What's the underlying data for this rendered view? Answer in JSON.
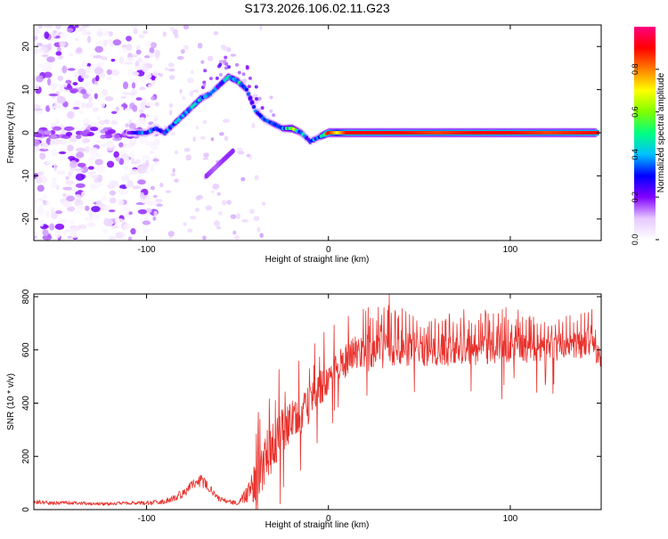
{
  "chart_data": [
    {
      "type": "heatmap",
      "title": "S173.2026.106.02.11.G23",
      "xlabel": "Height of straight line (km)",
      "ylabel": "Frequency (Hz)",
      "xlim": [
        -162,
        150
      ],
      "ylim": [
        -25,
        25
      ],
      "x_ticks": [
        -100,
        0,
        100
      ],
      "x_tick_labels": [
        "-100",
        "0",
        "100"
      ],
      "y_ticks": [
        -20,
        -10,
        0,
        10,
        20
      ],
      "y_tick_labels": [
        "-20",
        "-10",
        "0",
        "10",
        "20"
      ],
      "grid": false,
      "colorbar": {
        "label": "Normalized spectral amplitude",
        "range": [
          0,
          1
        ],
        "ticks": [
          0.0,
          0.2,
          0.4,
          0.6,
          0.8
        ],
        "tick_labels": [
          "0.0",
          "0.2",
          "0.4",
          "0.6",
          "0.8"
        ],
        "colors": [
          "#ffffff",
          "#e6c8ff",
          "#8000ff",
          "#0000ff",
          "#00c0ff",
          "#00ff80",
          "#80ff00",
          "#ffff00",
          "#ff8000",
          "#ff0000",
          "#ff0080"
        ]
      },
      "ridge": {
        "name": "dominant frequency track",
        "x": [
          -110,
          -105,
          -100,
          -95,
          -90,
          -85,
          -80,
          -75,
          -70,
          -65,
          -60,
          -55,
          -50,
          -45,
          -40,
          -35,
          -30,
          -25,
          -20,
          -15,
          -10,
          -5,
          0,
          5,
          10,
          20,
          40,
          60,
          80,
          100,
          120,
          148
        ],
        "y": [
          0,
          0,
          0,
          1,
          0,
          2,
          4,
          6,
          8,
          9,
          11,
          13,
          12,
          10,
          5,
          3,
          2,
          1,
          1,
          0,
          -2,
          -1,
          0,
          0,
          0,
          0,
          0,
          0,
          0,
          0,
          0,
          0
        ],
        "amplitude": [
          0.2,
          0.3,
          0.35,
          0.3,
          0.3,
          0.35,
          0.4,
          0.4,
          0.45,
          0.3,
          0.3,
          0.4,
          0.45,
          0.35,
          0.3,
          0.3,
          0.3,
          0.35,
          0.6,
          0.4,
          0.3,
          0.35,
          0.9,
          0.7,
          0.9,
          0.9,
          0.9,
          0.85,
          0.9,
          0.9,
          0.85,
          0.9
        ]
      },
      "secondary_branch": {
        "x": [
          -67,
          -62,
          -57,
          -52
        ],
        "y": [
          -10,
          -8,
          -6,
          -4
        ],
        "amplitude": [
          0.3,
          0.25,
          0.3,
          0.3
        ]
      },
      "noise_region": {
        "x_range": [
          -162,
          -100
        ],
        "y_range": [
          -25,
          25
        ],
        "amplitude_range": [
          0.02,
          0.15
        ]
      }
    },
    {
      "type": "line",
      "title": "",
      "xlabel": "Height of straight line (km)",
      "ylabel": "SNR (10 * v/v)",
      "xlim": [
        -162,
        150
      ],
      "ylim": [
        0,
        810
      ],
      "x_ticks": [
        -100,
        0,
        100
      ],
      "x_tick_labels": [
        "-100",
        "0",
        "100"
      ],
      "y_ticks": [
        0,
        200,
        400,
        600,
        800
      ],
      "y_tick_labels": [
        "0",
        "200",
        "400",
        "600",
        "800"
      ],
      "grid": false,
      "series": [
        {
          "name": "SNR",
          "color": "#e8322d",
          "x": [
            -162,
            -150,
            -140,
            -130,
            -120,
            -110,
            -100,
            -90,
            -80,
            -75,
            -70,
            -65,
            -60,
            -55,
            -50,
            -45,
            -40,
            -35,
            -30,
            -25,
            -20,
            -15,
            -10,
            -5,
            0,
            5,
            10,
            15,
            20,
            30,
            40,
            50,
            60,
            70,
            80,
            90,
            100,
            110,
            120,
            130,
            140,
            145,
            148,
            150
          ],
          "values": [
            30,
            25,
            25,
            22,
            22,
            25,
            25,
            30,
            60,
            90,
            110,
            80,
            40,
            30,
            25,
            60,
            100,
            180,
            250,
            300,
            330,
            350,
            400,
            450,
            500,
            540,
            560,
            580,
            590,
            600,
            610,
            600,
            600,
            600,
            600,
            610,
            610,
            600,
            610,
            610,
            620,
            640,
            580,
            550
          ],
          "spike_amplitude": [
            20,
            20,
            15,
            15,
            15,
            15,
            20,
            25,
            40,
            60,
            60,
            40,
            30,
            20,
            20,
            80,
            200,
            250,
            250,
            200,
            200,
            180,
            180,
            180,
            150,
            150,
            170,
            180,
            180,
            180,
            170,
            160,
            150,
            150,
            150,
            150,
            140,
            140,
            130,
            130,
            130,
            140,
            100,
            60
          ]
        }
      ]
    }
  ]
}
